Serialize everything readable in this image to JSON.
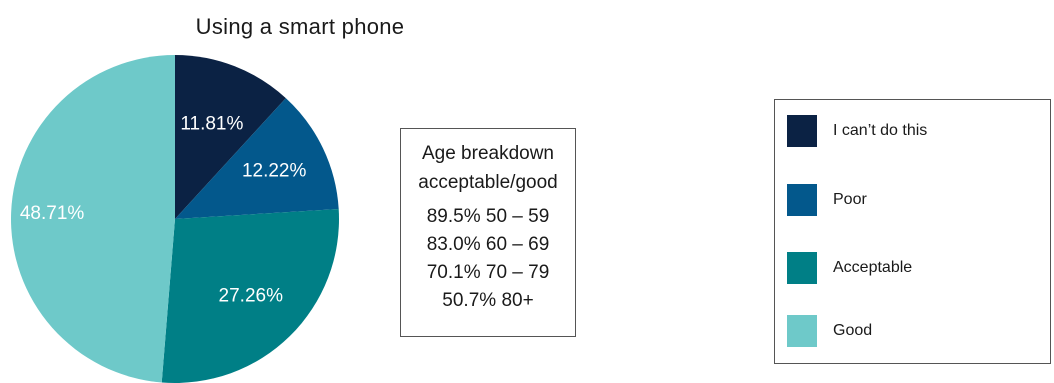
{
  "chart_data": {
    "type": "pie",
    "title": "Using a smart phone",
    "categories": [
      "I can’t do this",
      "Poor",
      "Acceptable",
      "Good"
    ],
    "values": [
      11.81,
      12.22,
      27.26,
      48.71
    ],
    "labels": [
      "11.81%",
      "12.22%",
      "27.26%",
      "48.71%"
    ],
    "colors": [
      "#0b2244",
      "#03588c",
      "#007f86",
      "#6ec9c9"
    ],
    "start_angle": "12 o'clock",
    "direction": "clockwise",
    "legend": "right",
    "text_box": {
      "header": [
        "Age breakdown",
        "acceptable/good"
      ],
      "rows": [
        "89.5% 50 – 59",
        "83.0% 60 – 69",
        "70.1% 70 – 79",
        "50.7% 80+"
      ]
    }
  }
}
